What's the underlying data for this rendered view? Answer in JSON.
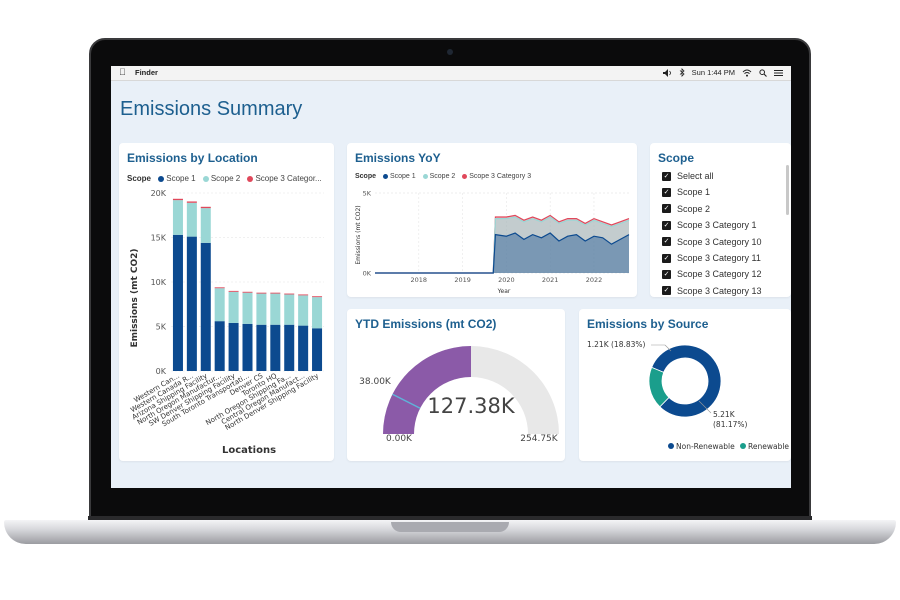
{
  "menubar": {
    "app_name": "Finder",
    "clock": "Sun 1:44 PM",
    "icons": [
      "apple-icon",
      "volume-icon",
      "bluetooth-icon",
      "wifi-icon",
      "search-icon",
      "menu-icon"
    ]
  },
  "page": {
    "title": "Emissions Summary"
  },
  "colors": {
    "scope1": "#0c4a8f",
    "scope2": "#9ad7d5",
    "scope3": "#e0485b",
    "accent": "#1d5f8f",
    "gauge_fill": "#8b5aa8",
    "non_renewable": "#0c4a8f",
    "renewable": "#1a9e8c"
  },
  "location_card": {
    "title": "Emissions by Location",
    "legend_label": "Scope",
    "legend_items": [
      "Scope 1",
      "Scope 2",
      "Scope 3 Categor..."
    ],
    "y_axis_label": "Emissions (mt CO2)",
    "x_axis_label": "Locations"
  },
  "yoy_card": {
    "title": "Emissions YoY",
    "legend_label": "Scope",
    "legend_items": [
      "Scope 1",
      "Scope 2",
      "Scope 3 Category 3"
    ],
    "y_axis_label": "Emissions (mt CO2)",
    "x_axis_label": "Year"
  },
  "scope_slicer": {
    "title": "Scope",
    "items": [
      "Select all",
      "Scope 1",
      "Scope 2",
      "Scope 3 Category 1",
      "Scope 3 Category 10",
      "Scope 3 Category 11",
      "Scope 3 Category 12",
      "Scope 3 Category 13"
    ]
  },
  "ytd_card": {
    "title": "YTD Emissions (mt CO2)",
    "value_label": "127.38K",
    "min_label": "0.00K",
    "max_label": "254.75K",
    "target_label": "38.00K"
  },
  "source_card": {
    "title": "Emissions by Source",
    "renewable_label_value": "1.21K (18.83%)",
    "nonrenewable_label_value": "5.21K",
    "nonrenewable_label_pct": "(81.17%)",
    "legend_items": [
      "Non-Renewable",
      "Renewable"
    ]
  },
  "chart_data": [
    {
      "type": "bar",
      "title": "Emissions by Location",
      "xlabel": "Locations",
      "ylabel": "Emissions (mt CO2)",
      "ylim": [
        0,
        20000
      ],
      "yticks": [
        "0K",
        "5K",
        "10K",
        "15K",
        "20K"
      ],
      "categories": [
        "Western Can...",
        "Western Canada R...",
        "Arizona Shipping Facility",
        "North Oregon Manufact...",
        "SW Denver Shipping Facility",
        "South Toronto Transportati...",
        "Denver CS",
        "Toronto HQ",
        "North Oregon Shipping Fa...",
        "Central Oregon Manufact...",
        "North Denver Shipping Facility"
      ],
      "tick_labels": [
        "Western Can...",
        "Western Canada R...",
        "Arizona Shipping Facility",
        "North Oregon Manufactur...",
        "SW Denver Shipping Facility",
        "South Toronto Transportati...",
        "Denver CS",
        "Toronto HQ",
        "North Oregon Shipping Fa...",
        "Central Oregon Manufact...",
        "North Denver Shipping Facility"
      ],
      "series": [
        {
          "name": "Scope 1",
          "values": [
            15300,
            15100,
            14400,
            5600,
            5400,
            5300,
            5200,
            5200,
            5200,
            5100,
            4800
          ]
        },
        {
          "name": "Scope 2",
          "values": [
            3900,
            3800,
            3900,
            3700,
            3500,
            3500,
            3500,
            3500,
            3400,
            3400,
            3500
          ]
        },
        {
          "name": "Scope 3 Categor...",
          "values": [
            150,
            150,
            150,
            100,
            100,
            100,
            100,
            100,
            100,
            100,
            100
          ]
        }
      ],
      "grid": true,
      "legend_position": "top"
    },
    {
      "type": "area",
      "title": "Emissions YoY",
      "xlabel": "Year",
      "ylabel": "Emissions (mt CO2)",
      "xlim": [
        2017.0,
        2022.8
      ],
      "ylim": [
        0,
        5000
      ],
      "xticks": [
        "2018",
        "2019",
        "2020",
        "2021",
        "2022"
      ],
      "yticks": [
        "0K",
        "5K"
      ],
      "x": [
        2017.0,
        2018.0,
        2019.0,
        2019.7,
        2019.75,
        2020.0,
        2020.2,
        2020.4,
        2020.6,
        2020.8,
        2021.0,
        2021.2,
        2021.4,
        2021.6,
        2021.8,
        2022.0,
        2022.2,
        2022.4,
        2022.6,
        2022.8
      ],
      "series": [
        {
          "name": "Scope 1",
          "values": [
            0,
            0,
            0,
            0,
            2400,
            2300,
            2500,
            2100,
            2400,
            2200,
            2500,
            2000,
            2300,
            2400,
            2000,
            2300,
            2200,
            1800,
            2100,
            2400
          ]
        },
        {
          "name": "Scope 2",
          "values": [
            0,
            0,
            0,
            0,
            1000,
            1100,
            1000,
            1100,
            1000,
            1000,
            1000,
            1100,
            1000,
            900,
            1000,
            1000,
            900,
            1100,
            1000,
            900
          ]
        },
        {
          "name": "Scope 3 Category 3",
          "values": [
            0,
            0,
            0,
            0,
            100,
            100,
            100,
            100,
            100,
            100,
            100,
            100,
            100,
            100,
            100,
            100,
            100,
            100,
            100,
            100
          ]
        }
      ],
      "grid": true,
      "legend_position": "top"
    },
    {
      "type": "gauge",
      "title": "YTD Emissions (mt CO2)",
      "value": 127380,
      "min": 0,
      "max": 254750,
      "target": 38000
    },
    {
      "type": "pie",
      "title": "Emissions by Source",
      "categories": [
        "Non-Renewable",
        "Renewable"
      ],
      "values": [
        5210,
        1210
      ],
      "percents": [
        81.17,
        18.83
      ],
      "donut": true,
      "legend_position": "bottom"
    }
  ]
}
